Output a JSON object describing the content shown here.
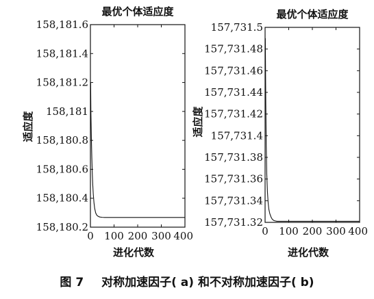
{
  "caption": {
    "figure_no": "图 7",
    "text": "对称加速因子( a) 和不对称加速因子( b)"
  },
  "chart_data": [
    {
      "type": "line",
      "title": "最优个体适应度",
      "xlabel": "进化代数",
      "ylabel": "适应度",
      "xlim": [
        0,
        400
      ],
      "ylim": [
        158180.2,
        158181.6
      ],
      "xticks": [
        0,
        100,
        200,
        300,
        400
      ],
      "xtick_labels": [
        "0",
        "100",
        "200",
        "300",
        "400"
      ],
      "yticks": [
        158180.2,
        158180.4,
        158180.6,
        158180.8,
        158181.0,
        158181.2,
        158181.4,
        158181.6
      ],
      "ytick_labels": [
        "158,180.2",
        "158,180.4",
        "158,180.6",
        "158,180.8",
        "158,181",
        "158,181.2",
        "158,181.4",
        "158,181.6"
      ],
      "grid": false,
      "series": [
        {
          "x": [
            1,
            2,
            4,
            6,
            8,
            10,
            12,
            15,
            18,
            22,
            26,
            30,
            35,
            40,
            50,
            60,
            80,
            100,
            150,
            200,
            300,
            400
          ],
          "y": [
            158181.2,
            158181.0,
            158180.82,
            158180.68,
            158180.57,
            158180.49,
            158180.43,
            158180.37,
            158180.33,
            158180.3,
            158180.285,
            158180.278,
            158180.273,
            158180.27,
            158180.268,
            158180.267,
            158180.267,
            158180.267,
            158180.267,
            158180.267,
            158180.267,
            158180.267
          ]
        }
      ]
    },
    {
      "type": "line",
      "title": "最优个体适应度",
      "xlabel": "进化代数",
      "ylabel": "适应度",
      "xlim": [
        0,
        400
      ],
      "ylim": [
        157731.32,
        157731.5
      ],
      "xticks": [
        0,
        100,
        200,
        300,
        400
      ],
      "xtick_labels": [
        "0",
        "100",
        "200",
        "300",
        "400"
      ],
      "yticks": [
        157731.32,
        157731.34,
        157731.36,
        157731.38,
        157731.4,
        157731.42,
        157731.44,
        157731.46,
        157731.48,
        157731.5
      ],
      "ytick_labels": [
        "157,731.32",
        "157,731.34",
        "157,731.36",
        "157,731.38",
        "157,731.4",
        "157,731.42",
        "157,731.44",
        "157,731.46",
        "157,731.48",
        "157,731.5"
      ],
      "grid": false,
      "series": [
        {
          "x": [
            1,
            2,
            3,
            5,
            7,
            10,
            13,
            16,
            20,
            25,
            30,
            35,
            40,
            50,
            60,
            80,
            100,
            150,
            200,
            300,
            400
          ],
          "y": [
            157731.49,
            157731.46,
            157731.43,
            157731.39,
            157731.365,
            157731.348,
            157731.338,
            157731.332,
            157731.328,
            157731.325,
            157731.323,
            157731.322,
            157731.3215,
            157731.321,
            157731.321,
            157731.321,
            157731.321,
            157731.321,
            157731.321,
            157731.321,
            157731.321
          ]
        }
      ]
    }
  ]
}
